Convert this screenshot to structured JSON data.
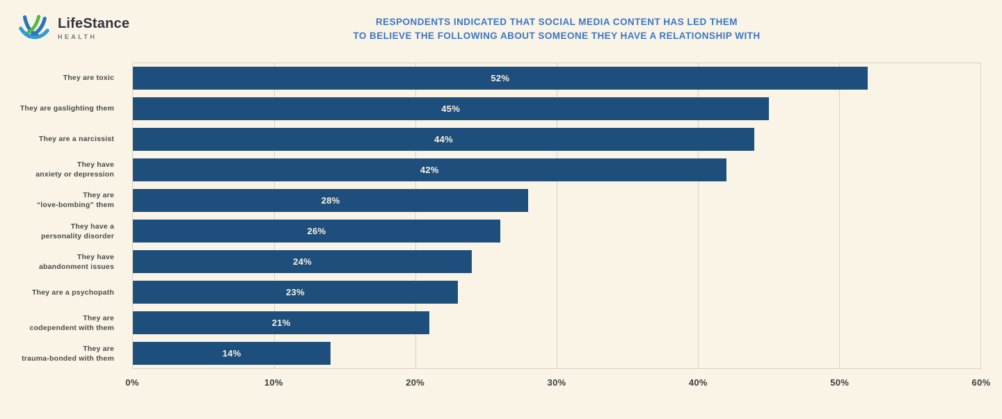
{
  "logo": {
    "brand": "LifeStance",
    "sub": "HEALTH"
  },
  "title": {
    "line1": "RESPONDENTS INDICATED THAT SOCIAL MEDIA CONTENT HAS LED THEM",
    "line2": "TO BELIEVE THE FOLLOWING ABOUT SOMEONE THEY HAVE A RELATIONSHIP WITH"
  },
  "colors": {
    "background": "#faf4e7",
    "title_text": "#3b76c5",
    "bar": "#1d4e7c",
    "bar_value_text": "#f8f2e3",
    "grid": "#d8d2c2",
    "category_text": "#4a4a4a",
    "axis_text": "#3c3c3c",
    "brand_text": "#33333b",
    "brand_sub_text": "#73737c",
    "logo_blue": "#2e74b8",
    "logo_light_blue": "#2f9cd6",
    "logo_green": "#52b849"
  },
  "chart_data": {
    "type": "bar",
    "orientation": "horizontal",
    "title": "RESPONDENTS INDICATED THAT SOCIAL MEDIA CONTENT HAS LED THEM TO BELIEVE THE FOLLOWING ABOUT SOMEONE THEY HAVE A RELATIONSHIP WITH",
    "categories": [
      "They are toxic",
      "They are gaslighting them",
      "They are a narcissist",
      "They have anxiety or depression",
      "They are “love-bombing” them",
      "They have a personality disorder",
      "They have abandonment issues",
      "They are a psychopath",
      "They are codependent with them",
      "They are trauma-bonded with them"
    ],
    "categories_display": [
      "They are toxic",
      "They are gaslighting them",
      "They are a narcissist",
      "They have\nanxiety or depression",
      "They are\n“love-bombing” them",
      "They have a\npersonality disorder",
      "They have\nabandonment issues",
      "They are a psychopath",
      "They are\ncodependent with them",
      "They are\ntrauma-bonded with them"
    ],
    "values": [
      52,
      45,
      44,
      42,
      28,
      26,
      24,
      23,
      21,
      14
    ],
    "value_labels": [
      "52%",
      "45%",
      "44%",
      "42%",
      "28%",
      "26%",
      "24%",
      "23%",
      "21%",
      "14%"
    ],
    "xlabel": "",
    "ylabel": "",
    "xlim": [
      0,
      60
    ],
    "x_ticks": [
      "0%",
      "10%",
      "20%",
      "30%",
      "40%",
      "50%",
      "60%"
    ],
    "x_tick_values": [
      0,
      10,
      20,
      30,
      40,
      50,
      60
    ],
    "grid": true,
    "grid_axis": "x",
    "legend": false,
    "value_label_position": "center-of-bar"
  }
}
